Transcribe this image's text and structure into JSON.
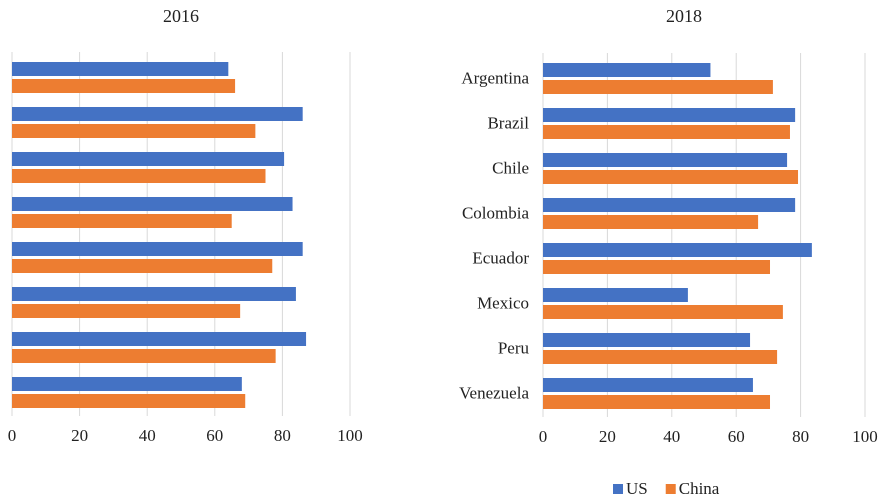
{
  "chart_data": [
    {
      "type": "hbar",
      "title": "2016",
      "categories": [
        null,
        null,
        null,
        null,
        null,
        null,
        null,
        null
      ],
      "series": [
        {
          "color": "#4472c4",
          "values": [
            64,
            86,
            80.5,
            83,
            86,
            84,
            87,
            68
          ]
        },
        {
          "color": "#ed7d31",
          "values": [
            66,
            72,
            75,
            65,
            77,
            67.5,
            78,
            69
          ]
        }
      ],
      "xlim": [
        0,
        100
      ],
      "xticks": [
        0,
        20,
        40,
        60,
        80,
        100
      ],
      "grid": true
    },
    {
      "type": "hbar",
      "title": "2018",
      "categories": [
        "Argentina",
        "Brazil",
        "Chile",
        "Colombia",
        "Ecuador",
        "Mexico",
        "Peru",
        "Venezuela"
      ],
      "series": [
        {
          "name": "US",
          "color": "#4472c4",
          "values": [
            52,
            78.3,
            75.8,
            78.3,
            83.5,
            45,
            64.3,
            65.2
          ]
        },
        {
          "name": "China",
          "color": "#ed7d31",
          "values": [
            71.4,
            76.7,
            79.2,
            66.8,
            70.5,
            74.5,
            72.7,
            70.5
          ]
        }
      ],
      "xlim": [
        0,
        100
      ],
      "xticks": [
        0,
        20,
        40,
        60,
        80,
        100
      ],
      "grid": true,
      "legend": "bottom"
    }
  ]
}
